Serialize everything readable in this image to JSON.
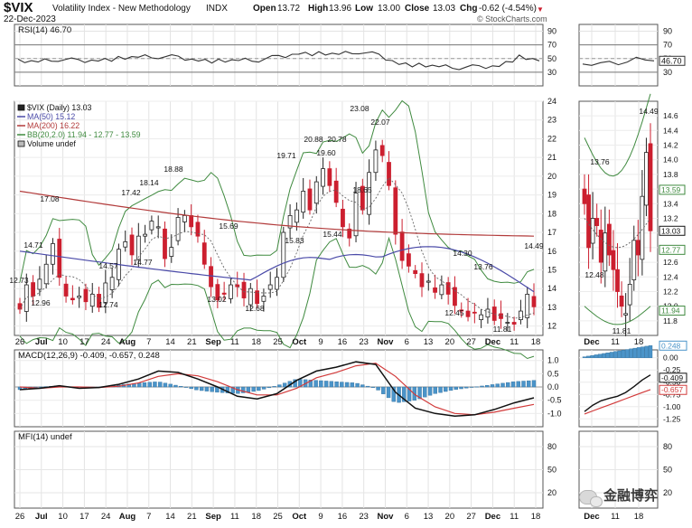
{
  "header": {
    "symbol": "$VIX",
    "name": "Volatility Index - New Methodology",
    "exchange": "INDX",
    "date": "22-Dec-2023",
    "watermark": "© StockCharts.com",
    "open_label": "Open",
    "open_value": "13.72",
    "high_label": "High",
    "high_value": "13.96",
    "low_label": "Low",
    "low_value": "13.00",
    "close_label": "Close",
    "close_value": "13.03",
    "chg_label": "Chg",
    "chg_value": "-0.62 (-4.54%)",
    "down_color": "#cc1f2f",
    "up_color": "#ffffff",
    "ma50_color": "#4a4aa8",
    "ma200_color": "#b23b3b",
    "bb_color": "#3f8a3f"
  },
  "branding": {
    "text": "金融博弈",
    "icon": "wechat-icon"
  },
  "chart_data": [
    {
      "type": "line",
      "panel": "rsi",
      "title": "RSI(14) 46.70",
      "ylim": [
        10,
        100
      ],
      "y_ticks": [
        "90",
        "70",
        "50",
        "30"
      ],
      "reference_lines": [
        70,
        50,
        30
      ],
      "x": [
        "Jun 26",
        "Jul 3",
        "Jul 10",
        "Jul 17",
        "Jul 24",
        "Aug 1",
        "Aug 7",
        "Aug 14",
        "Aug 21",
        "Aug 28",
        "Sep 5",
        "Sep 11",
        "Sep 18",
        "Sep 25",
        "Oct 2",
        "Oct 9",
        "Oct 16",
        "Oct 23",
        "Oct 30",
        "Nov 6",
        "Nov 13",
        "Nov 20",
        "Nov 27",
        "Dec 4",
        "Dec 11",
        "Dec 18",
        "Dec 22"
      ],
      "values": [
        46,
        45,
        49,
        47,
        48,
        50,
        52,
        53,
        52,
        48,
        46,
        47,
        48,
        53,
        58,
        57,
        56,
        60,
        55,
        43,
        40,
        38,
        37,
        38,
        40,
        52,
        46.7
      ],
      "last_value_label": "46.70",
      "inset_values": [
        42,
        40,
        44,
        46,
        41,
        45,
        52,
        48,
        46.7
      ]
    },
    {
      "type": "candlestick",
      "panel": "price",
      "title": "$VIX (Daily) 13.03",
      "ylim": [
        11.5,
        24
      ],
      "y_ticks": [
        "24",
        "23",
        "22",
        "21",
        "20",
        "19",
        "18",
        "17",
        "16",
        "15",
        "14",
        "13",
        "12"
      ],
      "x_ticks": [
        "26",
        "Jul",
        "10",
        "17",
        "24",
        "Aug",
        "7",
        "14",
        "21",
        "Sep",
        "11",
        "18",
        "25",
        "Oct",
        "9",
        "16",
        "23",
        "Nov",
        "6",
        "13",
        "20",
        "27",
        "Dec",
        "11",
        "18"
      ],
      "legend": [
        {
          "label": "$VIX (Daily) 13.03"
        },
        {
          "label": "MA(50) 15.12"
        },
        {
          "label": "MA(200) 16.22"
        },
        {
          "label": "BB(20,2.0) 11.94 - 12.77 - 13.59"
        },
        {
          "label": "Volume undef"
        }
      ],
      "annotations": [
        "12.73",
        "14.71",
        "12.96",
        "17.08",
        "12.74",
        "14.57",
        "17.42",
        "14.77",
        "18.14",
        "18.88",
        "13.02",
        "15.69",
        "12.68",
        "15.83",
        "19.71",
        "20.88",
        "19.60",
        "15.44",
        "20.78",
        "18.65",
        "23.08",
        "22.07",
        "14.30",
        "12.45",
        "13.76",
        "11.81",
        "14.49"
      ],
      "closes": [
        12.9,
        14.2,
        13.6,
        14.5,
        15.3,
        16.4,
        14.6,
        13.6,
        13.4,
        13.6,
        13.3,
        13.7,
        13.0,
        14.3,
        14.6,
        16.1,
        16.5,
        15.8,
        16.8,
        16.9,
        17.6,
        17.3,
        15.6,
        16.2,
        17.8,
        17.9,
        17.3,
        16.8,
        15.3,
        14.1,
        13.4,
        13.7,
        14.2,
        14.1,
        13.5,
        14.0,
        13.2,
        13.6,
        14.2,
        14.6,
        17.0,
        17.9,
        18.2,
        19.2,
        18.2,
        19.7,
        20.4,
        19.5,
        18.6,
        17.3,
        16.7,
        19.1,
        18.2,
        20.2,
        21.4,
        21.1,
        19.5,
        16.9,
        15.5,
        15.2,
        14.8,
        14.1,
        14.4,
        13.8,
        14.2,
        13.7,
        13.1,
        12.8,
        12.5,
        12.7,
        12.6,
        12.9,
        12.3,
        12.4,
        12.2,
        12.1,
        12.8,
        13.7,
        13.03
      ],
      "ma50_label": "15.12",
      "ma200_label": "16.22",
      "bb_upper_label": "13.59",
      "bb_mid_label": "12.77",
      "bb_lower_label": "11.94",
      "close_label": "13.03",
      "inset_x_ticks": [
        "Dec",
        "11",
        "18"
      ],
      "inset_y_ticks": [
        "14.6",
        "14.4",
        "14.2",
        "14.0",
        "13.8",
        "13.6",
        "13.4",
        "13.2",
        "13.0",
        "12.8",
        "12.6",
        "12.4",
        "12.2",
        "12.0",
        "11.8"
      ],
      "inset_annotations": [
        "13.76",
        "12.48",
        "11.81",
        "14.49"
      ],
      "inset_closes": [
        13.4,
        12.8,
        13.2,
        13.1,
        12.6,
        13.0,
        12.7,
        12.5,
        12.2,
        12.0,
        11.9,
        12.3,
        12.9,
        12.7,
        13.5,
        14.1,
        13.03
      ]
    },
    {
      "type": "line",
      "panel": "macd",
      "title": "MACD(12,26,9) -0.409, -0.657, 0.248",
      "ylim": [
        -1.5,
        1.4
      ],
      "y_ticks": [
        "1.0",
        "0.5",
        "0.0",
        "-0.5",
        "-1.0"
      ],
      "series": [
        {
          "name": "MACD(12,26,9)",
          "values": [
            -0.1,
            -0.05,
            0.05,
            -0.05,
            -0.02,
            0.1,
            0.3,
            0.6,
            0.55,
            0.3,
            0.0,
            -0.35,
            -0.45,
            -0.25,
            0.25,
            0.6,
            0.75,
            0.95,
            0.85,
            -0.2,
            -0.8,
            -1.0,
            -1.1,
            -1.05,
            -0.85,
            -0.6,
            -0.409
          ]
        },
        {
          "name": "signal",
          "values": [
            0.0,
            -0.05,
            0.0,
            0.0,
            -0.02,
            0.03,
            0.15,
            0.4,
            0.5,
            0.42,
            0.2,
            -0.1,
            -0.3,
            -0.3,
            -0.05,
            0.35,
            0.55,
            0.8,
            0.9,
            0.4,
            -0.3,
            -0.75,
            -1.0,
            -1.05,
            -0.95,
            -0.8,
            -0.657
          ]
        },
        {
          "name": "histogram",
          "values": [
            -0.1,
            0.0,
            0.05,
            -0.05,
            0.0,
            0.07,
            0.15,
            0.2,
            0.05,
            -0.12,
            -0.2,
            -0.25,
            -0.15,
            0.05,
            0.3,
            0.25,
            0.2,
            0.15,
            -0.05,
            -0.6,
            -0.5,
            -0.25,
            -0.1,
            0.0,
            0.1,
            0.2,
            0.248
          ]
        }
      ],
      "value_labels": [
        "0.248",
        "-0.409",
        "-0.657"
      ],
      "inset_y_ticks": [
        "0.00",
        "-0.25",
        "-0.50",
        "-0.75",
        "-1.00",
        "-1.25"
      ]
    },
    {
      "type": "line",
      "panel": "mfi",
      "title": "MFI(14) undef",
      "ylim": [
        0,
        100
      ],
      "y_ticks": [
        "80",
        "50",
        "20"
      ],
      "reference_lines": [
        80,
        50,
        20
      ],
      "values": []
    }
  ],
  "bottom_axis": {
    "labels": [
      "26",
      "Jul",
      "10",
      "17",
      "24",
      "Aug",
      "7",
      "14",
      "21",
      "Sep",
      "11",
      "18",
      "25",
      "Oct",
      "9",
      "16",
      "23",
      "Nov",
      "6",
      "13",
      "20",
      "27",
      "Dec",
      "11",
      "18"
    ],
    "inset_labels": [
      "Dec",
      "11",
      "18"
    ]
  }
}
